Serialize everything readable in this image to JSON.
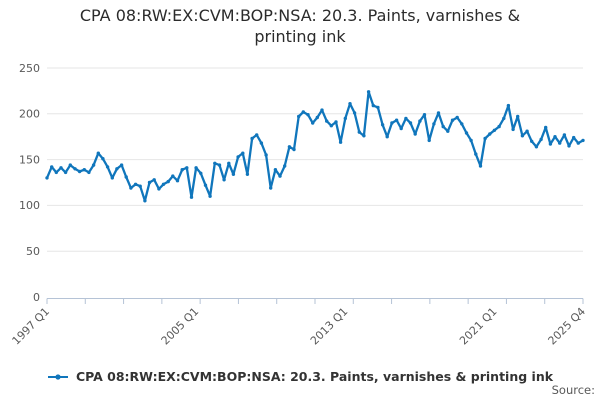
{
  "title": {
    "line1": "CPA 08:RW:EX:CVM:BOP:NSA: 20.3. Paints, varnishes &",
    "line2": "printing ink"
  },
  "legend": {
    "label": "CPA 08:RW:EX:CVM:BOP:NSA: 20.3. Paints, varnishes & printing ink"
  },
  "footer": {
    "source_label": "Source:"
  },
  "colors": {
    "line": "#1076bc",
    "grid": "#e6e6e6",
    "axis": "#b5c3d6",
    "tick_text": "#595959",
    "title_text": "#2b2b2b"
  },
  "chart_data": {
    "type": "line",
    "title": "CPA 08:RW:EX:CVM:BOP:NSA: 20.3. Paints, varnishes & printing ink",
    "xlabel": "",
    "ylabel": "",
    "ylim": [
      0,
      250
    ],
    "y_ticks": [
      0,
      50,
      100,
      150,
      200,
      250
    ],
    "grid": "horizontal",
    "legend_position": "bottom",
    "x_tick_labels": [
      "1997 Q1",
      "2005 Q1",
      "2013 Q1",
      "2021 Q1",
      "2025 Q4"
    ],
    "x_tick_quarter_indices": [
      0,
      32,
      64,
      96,
      115
    ],
    "x_axis_minor_tick_count": 15,
    "series": [
      {
        "name": "CPA 08:RW:EX:CVM:BOP:NSA: 20.3. Paints, varnishes & printing ink",
        "frequency": "quarterly",
        "first_period": "1997 Q1",
        "last_period": "2025 Q4",
        "values": [
          130,
          142,
          136,
          141,
          136,
          144,
          140,
          137,
          139,
          136,
          144,
          157,
          151,
          142,
          130,
          140,
          144,
          131,
          119,
          123,
          121,
          105,
          125,
          128,
          118,
          123,
          126,
          132,
          127,
          139,
          141,
          109,
          141,
          135,
          122,
          110,
          146,
          144,
          128,
          146,
          134,
          153,
          157,
          134,
          173,
          177,
          168,
          155,
          119,
          139,
          132,
          143,
          164,
          161,
          197,
          202,
          199,
          190,
          196,
          204,
          192,
          187,
          191,
          169,
          195,
          211,
          201,
          180,
          176,
          224,
          209,
          207,
          188,
          175,
          190,
          193,
          184,
          195,
          190,
          178,
          192,
          199,
          171,
          189,
          201,
          186,
          181,
          193,
          196,
          189,
          179,
          171,
          156,
          143,
          173,
          178,
          182,
          186,
          195,
          209,
          183,
          197,
          176,
          181,
          170,
          164,
          172,
          185,
          167,
          175,
          168,
          177,
          165,
          174,
          168,
          171
        ]
      }
    ]
  }
}
